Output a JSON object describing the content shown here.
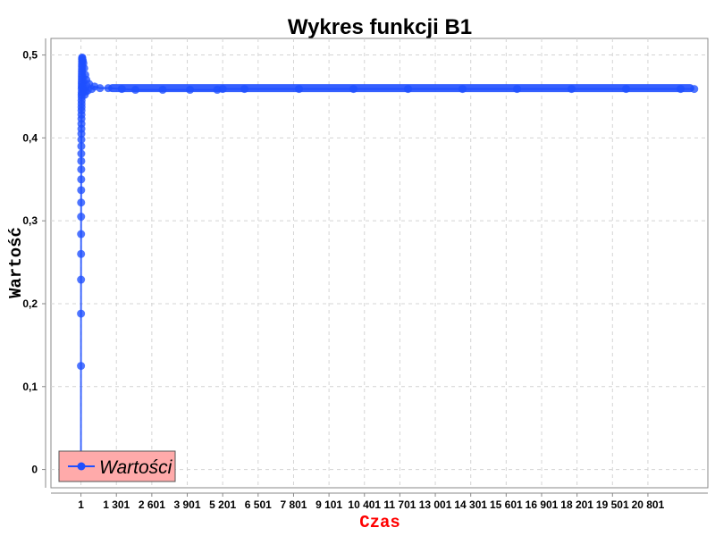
{
  "chart_data": {
    "type": "line",
    "title": "Wykres funkcji B1",
    "xlabel": "Czas",
    "ylabel": "Wartość",
    "xlabel_color": "#ff0000",
    "series_color": "#1f4fff",
    "grid": true,
    "legend": {
      "placement": "bottom-left",
      "label": "Wartości",
      "background": "#ffaaaa"
    },
    "x_ticks": [
      {
        "value": 1,
        "label": "1"
      },
      {
        "value": 1301,
        "label": "1 301"
      },
      {
        "value": 2601,
        "label": "2 601"
      },
      {
        "value": 3901,
        "label": "3 901"
      },
      {
        "value": 5201,
        "label": "5 201"
      },
      {
        "value": 6501,
        "label": "6 501"
      },
      {
        "value": 7801,
        "label": "7 801"
      },
      {
        "value": 9101,
        "label": "9 101"
      },
      {
        "value": 10401,
        "label": "10 401"
      },
      {
        "value": 11701,
        "label": "11 701"
      },
      {
        "value": 13001,
        "label": "13 001"
      },
      {
        "value": 14301,
        "label": "14 301"
      },
      {
        "value": 15601,
        "label": "15 601"
      },
      {
        "value": 16901,
        "label": "16 901"
      },
      {
        "value": 18201,
        "label": "18 201"
      },
      {
        "value": 19501,
        "label": "19 501"
      },
      {
        "value": 20801,
        "label": "20 801"
      }
    ],
    "y_ticks": [
      {
        "value": 0,
        "label": "0"
      },
      {
        "value": 0.1,
        "label": "0,1"
      },
      {
        "value": 0.2,
        "label": "0,2"
      },
      {
        "value": 0.3,
        "label": "0,3"
      },
      {
        "value": 0.4,
        "label": "0,4"
      },
      {
        "value": 0.5,
        "label": "0,5"
      }
    ],
    "xlim": [
      -1100,
      23000
    ],
    "ylim": [
      -0.022,
      0.52
    ],
    "series": [
      {
        "x": [
          1,
          2,
          3,
          4,
          5,
          6,
          7,
          8,
          9,
          10,
          11,
          12,
          13,
          14,
          15,
          16,
          17,
          18,
          19,
          20,
          21,
          22,
          23,
          24,
          25,
          26,
          27,
          28,
          29,
          30,
          31,
          32,
          33,
          34,
          35,
          36,
          37,
          38,
          39,
          40,
          45,
          50,
          60,
          70,
          80,
          90,
          100,
          120,
          140,
          160,
          180,
          200,
          250,
          300,
          400,
          500,
          700,
          1000,
          1500,
          2000,
          3000,
          4000,
          5000,
          5201,
          6000,
          8000,
          10000,
          12000,
          14000,
          16000,
          18000,
          20000,
          22000,
          22500
        ],
        "y": [
          0,
          0.125,
          0.188,
          0.229,
          0.26,
          0.284,
          0.305,
          0.322,
          0.337,
          0.35,
          0.362,
          0.372,
          0.381,
          0.39,
          0.398,
          0.405,
          0.411,
          0.417,
          0.423,
          0.428,
          0.433,
          0.437,
          0.441,
          0.445,
          0.449,
          0.452,
          0.455,
          0.459,
          0.462,
          0.465,
          0.468,
          0.471,
          0.474,
          0.477,
          0.48,
          0.483,
          0.486,
          0.489,
          0.492,
          0.495,
          0.497,
          0.496,
          0.462,
          0.493,
          0.455,
          0.49,
          0.458,
          0.484,
          0.452,
          0.476,
          0.456,
          0.47,
          0.457,
          0.465,
          0.459,
          0.462,
          0.46,
          0.46,
          0.459,
          0.458,
          0.458,
          0.458,
          0.458,
          0.459,
          0.459,
          0.459,
          0.459,
          0.459,
          0.459,
          0.459,
          0.459,
          0.459,
          0.459,
          0.459
        ]
      }
    ]
  }
}
